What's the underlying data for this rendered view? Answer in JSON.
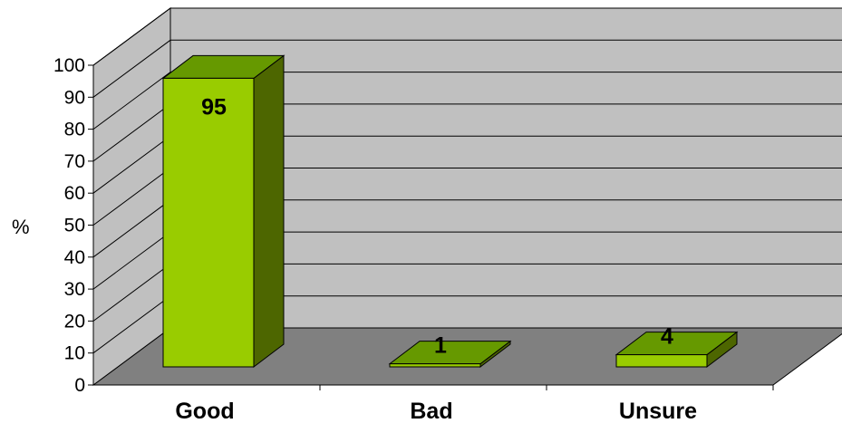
{
  "chart_data": {
    "type": "bar",
    "title": "",
    "xlabel": "",
    "ylabel": "%",
    "ylim": [
      0,
      100
    ],
    "yticks": [
      0,
      10,
      20,
      30,
      40,
      50,
      60,
      70,
      80,
      90,
      100
    ],
    "categories": [
      "Good",
      "Bad",
      "Unsure"
    ],
    "series": [
      {
        "values": [
          95,
          1,
          4
        ]
      }
    ],
    "grid": true,
    "legend": "none",
    "three_d": true
  },
  "colors": {
    "bar_front": "#99cc00",
    "bar_top": "#669900",
    "bar_side": "#4d6600",
    "back_wall": "#c0c0c0",
    "side_wall": "#c0c0c0",
    "floor": "#808080"
  }
}
